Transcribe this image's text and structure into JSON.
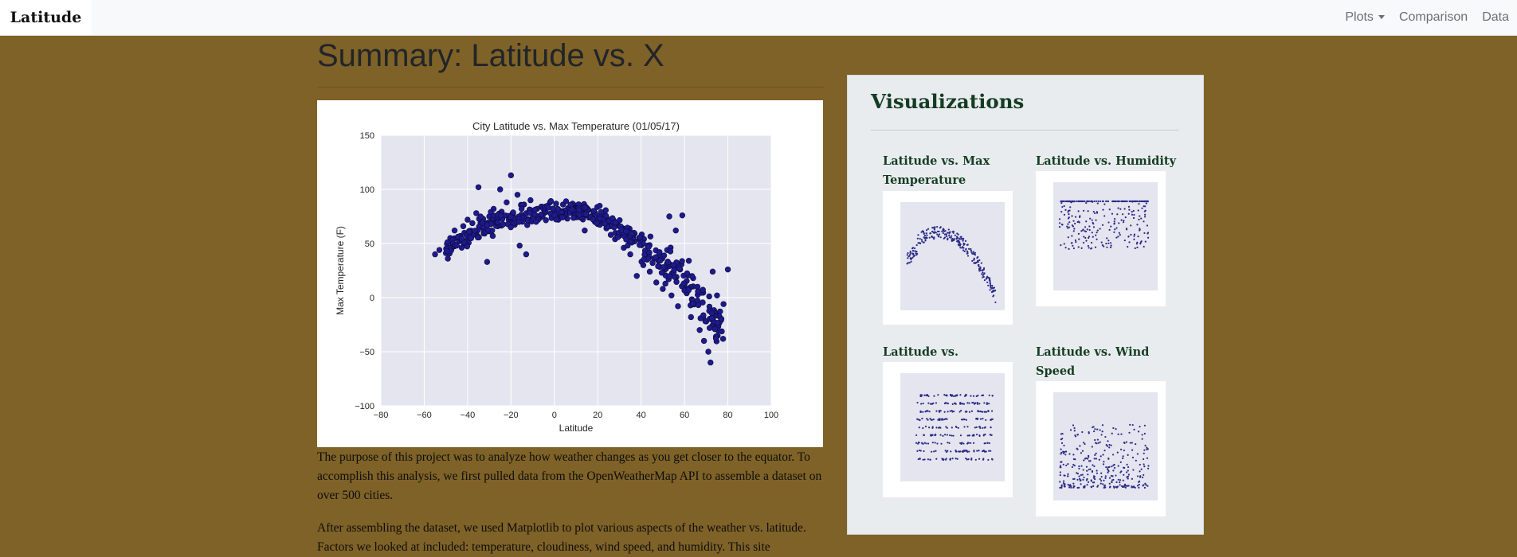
{
  "navbar": {
    "brand": "Latitude",
    "links": [
      "Plots",
      "Comparison",
      "Data"
    ]
  },
  "page": {
    "title": "Summary: Latitude vs. X",
    "paragraphs": [
      "The purpose of this project was to analyze how weather changes as you get closer to the equator. To accomplish this analysis, we first pulled data from the OpenWeatherMap API to assemble a dataset on over 500 cities.",
      "After assembling the dataset, we used Matplotlib to plot various aspects of the weather vs. latitude. Factors we looked at included: temperature, cloudiness, wind speed, and humidity. This site"
    ]
  },
  "visualizations": {
    "title": "Visualizations",
    "items": [
      {
        "title": "Latitude vs. Max Temperature"
      },
      {
        "title": "Latitude vs. Humidity"
      },
      {
        "title": "Latitude vs. Cloudiness"
      },
      {
        "title": "Latitude vs. Wind Speed"
      }
    ]
  },
  "colors": {
    "background": "#7f6227",
    "panel": "#e9ecef",
    "heading": "#143d22",
    "plot_bg": "#e5e5f0",
    "marker": "#1f1a8c"
  },
  "chart_data": [
    {
      "type": "scatter",
      "title": "City Latitude vs. Max Temperature (01/05/17)",
      "xlabel": "Latitude",
      "ylabel": "Max Temperature (F)",
      "xlim": [
        -80,
        100
      ],
      "ylim": [
        -100,
        150
      ],
      "xticks": [
        "−80",
        "−60",
        "−40",
        "−20",
        "0",
        "20",
        "40",
        "60",
        "80",
        "100"
      ],
      "yticks": [
        "150",
        "100",
        "50",
        "0",
        "−50",
        "−100"
      ],
      "grid": true,
      "trend": {
        "description": "approximate shape of point cloud",
        "x": [
          -55,
          -45,
          -35,
          -25,
          -15,
          -5,
          5,
          15,
          25,
          35,
          45,
          55,
          62,
          68,
          75,
          80
        ],
        "y": [
          40,
          52,
          64,
          72,
          76,
          79,
          80,
          78,
          72,
          58,
          42,
          26,
          12,
          -6,
          -22,
          -38
        ]
      },
      "points": [
        [
          -55,
          40
        ],
        [
          -53,
          44
        ],
        [
          -48,
          55
        ],
        [
          -46,
          62
        ],
        [
          -44,
          52
        ],
        [
          -42,
          66
        ],
        [
          -40,
          72
        ],
        [
          -38,
          60
        ],
        [
          -36,
          78
        ],
        [
          -35,
          102
        ],
        [
          -33,
          70
        ],
        [
          -31,
          33
        ],
        [
          -30,
          75
        ],
        [
          -28,
          82
        ],
        [
          -26,
          68
        ],
        [
          -25,
          100
        ],
        [
          -22,
          88
        ],
        [
          -20,
          113
        ],
        [
          -19,
          78
        ],
        [
          -17,
          95
        ],
        [
          -16,
          48
        ],
        [
          -14,
          86
        ],
        [
          -13,
          40
        ],
        [
          -11,
          90
        ],
        [
          -10,
          74
        ],
        [
          -8,
          82
        ],
        [
          -6,
          84
        ],
        [
          -4,
          79
        ],
        [
          -2,
          88
        ],
        [
          0,
          81
        ],
        [
          2,
          78
        ],
        [
          4,
          86
        ],
        [
          6,
          73
        ],
        [
          8,
          80
        ],
        [
          10,
          84
        ],
        [
          12,
          76
        ],
        [
          14,
          62
        ],
        [
          16,
          74
        ],
        [
          18,
          80
        ],
        [
          20,
          68
        ],
        [
          22,
          72
        ],
        [
          24,
          64
        ],
        [
          26,
          58
        ],
        [
          28,
          54
        ],
        [
          30,
          66
        ],
        [
          32,
          46
        ],
        [
          34,
          60
        ],
        [
          35,
          40
        ],
        [
          37,
          52
        ],
        [
          38,
          20
        ],
        [
          40,
          55
        ],
        [
          41,
          30
        ],
        [
          43,
          48
        ],
        [
          44,
          24
        ],
        [
          46,
          36
        ],
        [
          47,
          14
        ],
        [
          48,
          34
        ],
        [
          50,
          8
        ],
        [
          51,
          26
        ],
        [
          52,
          44
        ],
        [
          53,
          75
        ],
        [
          54,
          2
        ],
        [
          55,
          20
        ],
        [
          56,
          62
        ],
        [
          57,
          -8
        ],
        [
          58,
          26
        ],
        [
          59,
          76
        ],
        [
          60,
          12
        ],
        [
          61,
          4
        ],
        [
          62,
          34
        ],
        [
          63,
          -18
        ],
        [
          64,
          18
        ],
        [
          65,
          -4
        ],
        [
          66,
          10
        ],
        [
          67,
          -30
        ],
        [
          68,
          6
        ],
        [
          69,
          -40
        ],
        [
          70,
          -22
        ],
        [
          71,
          -50
        ],
        [
          72,
          -60
        ],
        [
          73,
          24
        ],
        [
          74,
          -14
        ],
        [
          75,
          2
        ],
        [
          78,
          -6
        ],
        [
          80,
          26
        ]
      ]
    }
  ]
}
